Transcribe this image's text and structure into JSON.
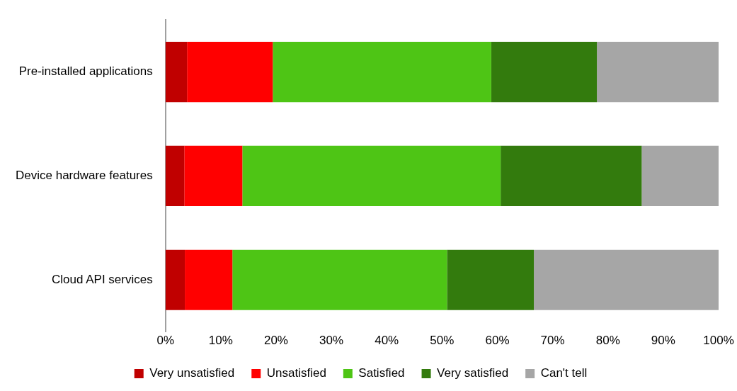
{
  "chart_data": {
    "type": "bar",
    "orientation": "horizontal",
    "stacked": true,
    "categories": [
      "Pre-installed applications",
      "Device hardware features",
      "Cloud API services"
    ],
    "series": [
      {
        "name": "Very unsatisfied",
        "color": "#c00000",
        "values": [
          3.9,
          3.4,
          3.5
        ]
      },
      {
        "name": "Unsatisfied",
        "color": "#ff0000",
        "values": [
          15.5,
          10.5,
          8.6
        ]
      },
      {
        "name": "Satisfied",
        "color": "#4ec515",
        "values": [
          39.5,
          46.7,
          38.8
        ]
      },
      {
        "name": "Very satisfied",
        "color": "#337b0d",
        "values": [
          19.1,
          25.5,
          15.7
        ]
      },
      {
        "name": "Can't tell",
        "color": "#a6a6a6",
        "values": [
          22.0,
          13.9,
          33.4
        ]
      }
    ],
    "xlim": [
      0,
      100
    ],
    "xticks": [
      {
        "value": 0,
        "label": "0%"
      },
      {
        "value": 10,
        "label": "10%"
      },
      {
        "value": 20,
        "label": "20%"
      },
      {
        "value": 30,
        "label": "30%"
      },
      {
        "value": 40,
        "label": "40%"
      },
      {
        "value": 50,
        "label": "50%"
      },
      {
        "value": 60,
        "label": "60%"
      },
      {
        "value": 70,
        "label": "70%"
      },
      {
        "value": 80,
        "label": "80%"
      },
      {
        "value": 90,
        "label": "90%"
      },
      {
        "value": 100,
        "label": "100%"
      }
    ],
    "grid": false,
    "legend": "bottom"
  }
}
